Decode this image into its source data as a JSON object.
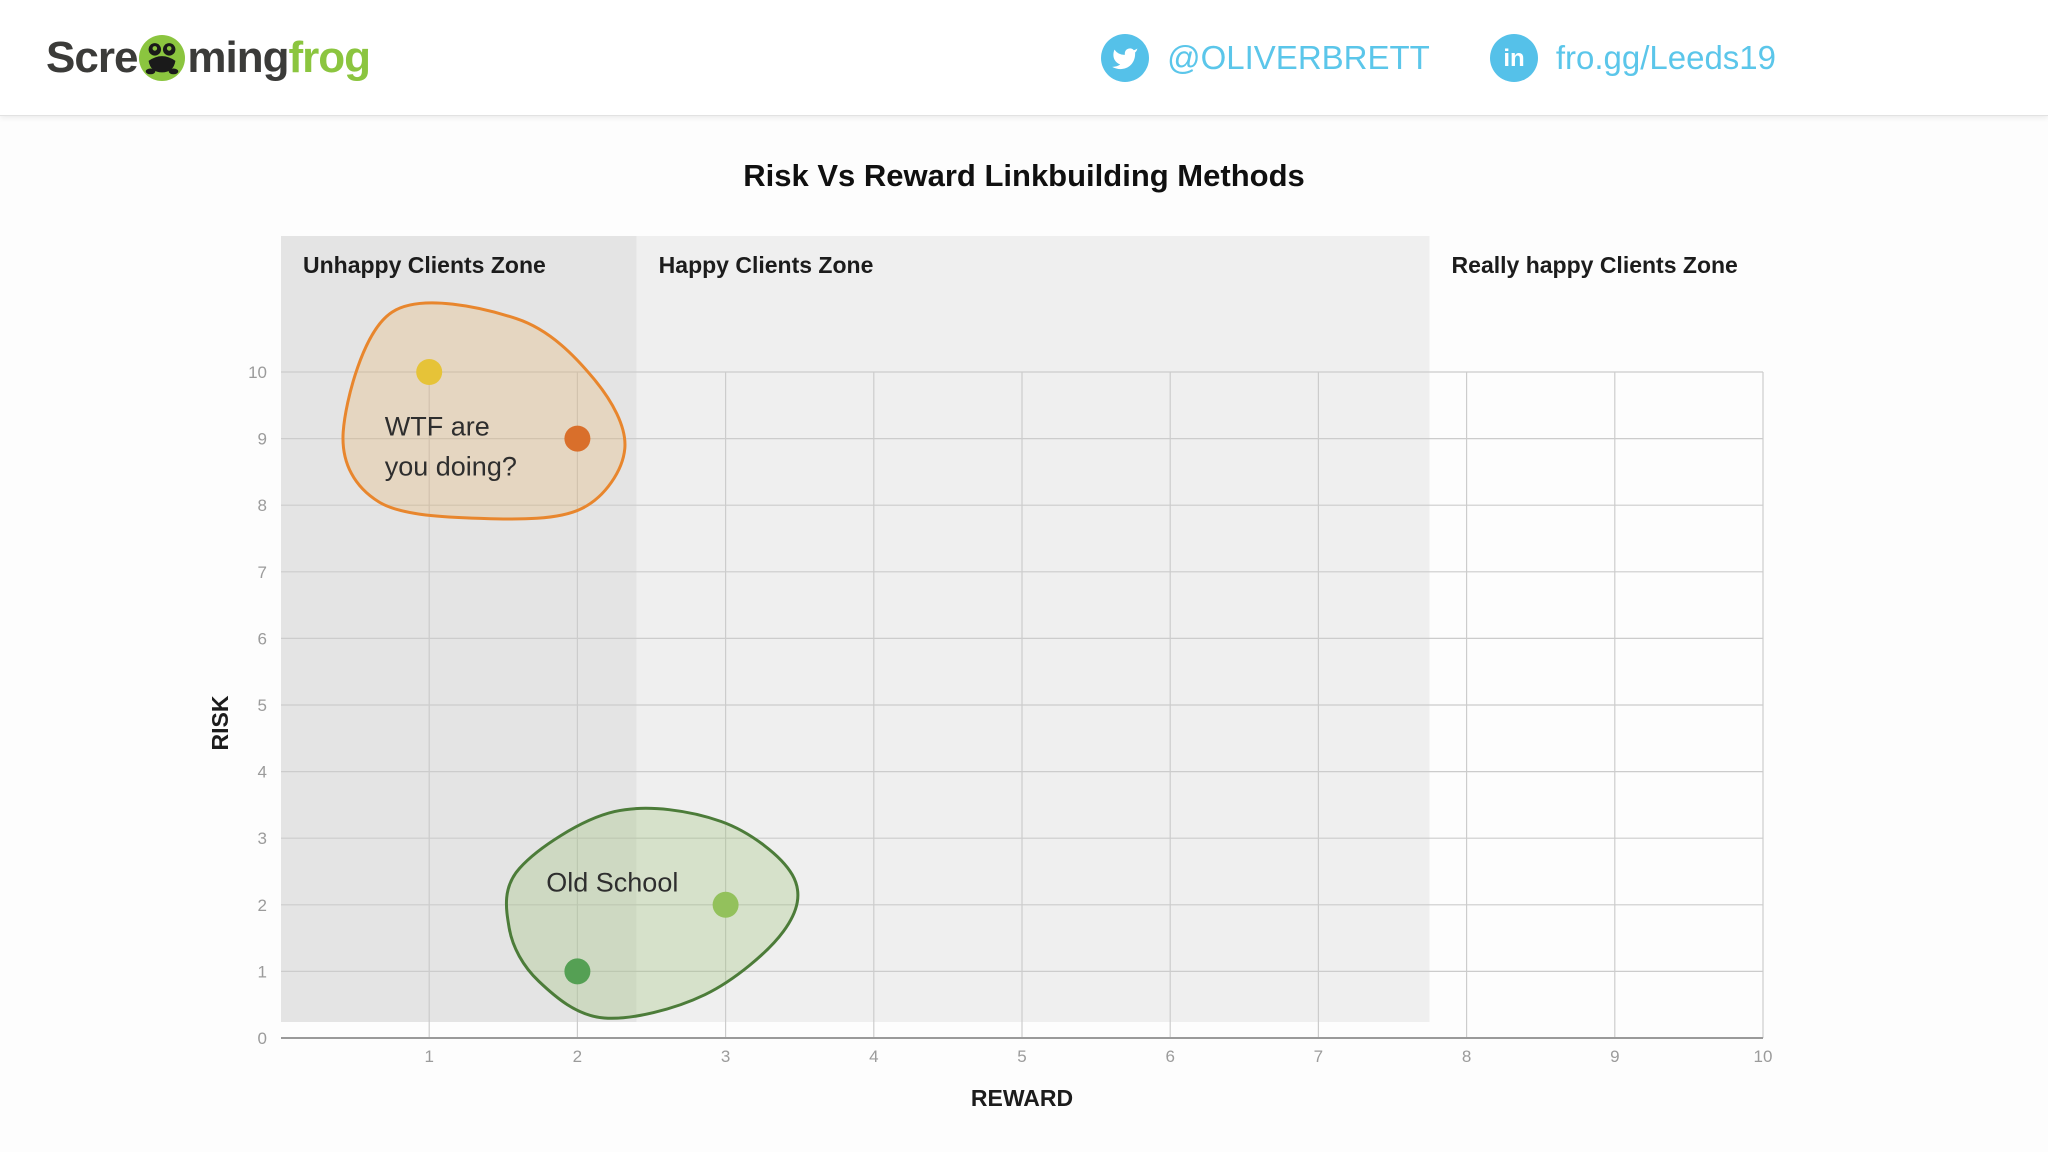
{
  "header": {
    "logo": {
      "prefix": "Scre",
      "mid": "ming",
      "suffix": "frog"
    },
    "twitter_handle": "@OLIVERBRETT",
    "linkedin_label": "fro.gg/Leeds19"
  },
  "colors": {
    "accent_blue": "#55c1e9",
    "logo_green": "#8bc53f"
  },
  "chart_data": {
    "type": "scatter",
    "title": "Risk Vs Reward Linkbuilding Methods",
    "xlabel": "REWARD",
    "ylabel": "RISK",
    "xlim": [
      0,
      10
    ],
    "ylim": [
      0,
      10
    ],
    "x_ticks": [
      1,
      2,
      3,
      4,
      5,
      6,
      7,
      8,
      9,
      10
    ],
    "y_ticks": [
      0,
      1,
      2,
      3,
      4,
      5,
      6,
      7,
      8,
      9,
      10
    ],
    "grid": true,
    "legend": "none",
    "zones": [
      {
        "label": "Unhappy Clients Zone",
        "x_start": 0,
        "x_end": 2.4,
        "fill": "#e4e4e4"
      },
      {
        "label": "Happy Clients Zone",
        "x_start": 2.4,
        "x_end": 7.75,
        "fill": "#efefef"
      },
      {
        "label": "Really happy Clients Zone",
        "x_start": 7.75,
        "x_end": 10,
        "fill": "none"
      }
    ],
    "points": [
      {
        "x": 1,
        "y": 10,
        "color": "#e6c338"
      },
      {
        "x": 2,
        "y": 9,
        "color": "#d96f2b"
      },
      {
        "x": 3,
        "y": 2,
        "color": "#93c15c"
      },
      {
        "x": 2,
        "y": 1,
        "color": "#55a054"
      }
    ],
    "annotations": [
      {
        "lines": [
          "WTF are",
          "you doing?"
        ],
        "text_x": 0.7,
        "text_y": 9.05,
        "stroke": "#e8862d",
        "fill": "rgba(230,162,70,0.22)",
        "outline": [
          [
            0.75,
            10.9
          ],
          [
            0.42,
            9.1
          ],
          [
            0.66,
            8.05
          ],
          [
            1.37,
            7.8
          ],
          [
            2.03,
            7.95
          ],
          [
            2.32,
            8.85
          ],
          [
            2.11,
            9.9
          ],
          [
            1.59,
            10.8
          ]
        ]
      },
      {
        "lines": [
          "Old School"
        ],
        "text_x": 1.79,
        "text_y": 2.2,
        "stroke": "#4c7c39",
        "fill": "rgba(150,192,108,0.28)",
        "outline": [
          [
            2.25,
            3.4
          ],
          [
            1.61,
            2.55
          ],
          [
            1.54,
            1.65
          ],
          [
            1.74,
            0.85
          ],
          [
            2.18,
            0.3
          ],
          [
            2.86,
            0.65
          ],
          [
            3.39,
            1.6
          ],
          [
            3.45,
            2.45
          ],
          [
            2.97,
            3.25
          ]
        ]
      }
    ]
  }
}
